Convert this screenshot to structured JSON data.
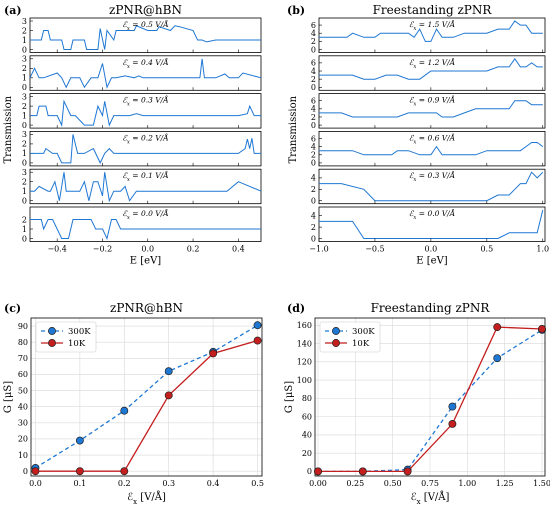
{
  "chart_data": [
    {
      "id": "a",
      "panel_label": "(a)",
      "type": "line",
      "title": "zPNR@hBN",
      "xlabel": "E [eV]",
      "ylabel": "Transmission",
      "xlim": [
        -0.52,
        0.5
      ],
      "xticks": [
        "−0.4",
        "−0.2",
        "0.0",
        "0.2",
        "0.4"
      ],
      "xtick_values": [
        -0.4,
        -0.2,
        0.0,
        0.2,
        0.4
      ],
      "color": "#1f77d4",
      "subplots": [
        {
          "label": "ℰ_x = 0.5 V/Å",
          "ylim": [
            0,
            3
          ],
          "yticks": [
            "0",
            "1",
            "2",
            "3"
          ],
          "x": [
            -0.52,
            -0.47,
            -0.46,
            -0.44,
            -0.43,
            -0.38,
            -0.37,
            -0.34,
            -0.33,
            -0.28,
            -0.27,
            -0.22,
            -0.21,
            -0.19,
            -0.18,
            -0.15,
            -0.14,
            -0.1,
            -0.06,
            -0.05,
            0.0,
            0.04,
            0.05,
            0.1,
            0.12,
            0.14,
            0.2,
            0.22,
            0.24,
            0.26,
            0.3,
            0.5
          ],
          "y": [
            1,
            1,
            2,
            2,
            1,
            1,
            0,
            0,
            1,
            1,
            0,
            0,
            2.2,
            0,
            2,
            1,
            2,
            2,
            2,
            2.5,
            2,
            2,
            2.4,
            2,
            2.5,
            2.4,
            2,
            1,
            1,
            0.8,
            1,
            1
          ]
        },
        {
          "label": "ℰ_x = 0.4 V/Å",
          "ylim": [
            0,
            3
          ],
          "yticks": [
            "0",
            "1",
            "2",
            "3"
          ],
          "x": [
            -0.52,
            -0.5,
            -0.48,
            -0.46,
            -0.4,
            -0.38,
            -0.36,
            -0.34,
            -0.3,
            -0.28,
            -0.25,
            -0.22,
            -0.2,
            -0.18,
            -0.16,
            -0.14,
            -0.1,
            -0.06,
            -0.04,
            -0.02,
            0.0,
            0.05,
            0.1,
            0.15,
            0.2,
            0.23,
            0.24,
            0.25,
            0.28,
            0.3,
            0.34,
            0.36,
            0.4,
            0.42,
            0.5
          ],
          "y": [
            1,
            2,
            1,
            1,
            1.5,
            1,
            0,
            1,
            1,
            0,
            1,
            1,
            2.5,
            0,
            1,
            1,
            1.2,
            1,
            1.2,
            1,
            1,
            1,
            1,
            1,
            1,
            1,
            3,
            1,
            1,
            1,
            1.4,
            1,
            1,
            1.5,
            1
          ]
        },
        {
          "label": "ℰ_x = 0.3 V/Å",
          "ylim": [
            0,
            3
          ],
          "yticks": [
            "0",
            "1",
            "2",
            "3"
          ],
          "x": [
            -0.52,
            -0.49,
            -0.48,
            -0.45,
            -0.44,
            -0.4,
            -0.38,
            -0.37,
            -0.34,
            -0.32,
            -0.28,
            -0.24,
            -0.22,
            -0.2,
            -0.19,
            -0.17,
            -0.15,
            -0.12,
            -0.08,
            -0.05,
            -0.02,
            0.0,
            0.05,
            0.1,
            0.2,
            0.25,
            0.3,
            0.35,
            0.4,
            0.44,
            0.45,
            0.47,
            0.5
          ],
          "y": [
            1,
            1,
            2,
            2,
            1,
            1,
            0,
            2.5,
            1,
            1,
            0,
            0,
            2,
            1,
            2.5,
            0,
            1,
            1,
            1,
            1.2,
            1,
            1,
            1,
            1,
            1,
            1,
            1,
            1,
            1,
            1.2,
            2,
            1,
            1
          ]
        },
        {
          "label": "ℰ_x = 0.2 V/Å",
          "ylim": [
            0,
            3
          ],
          "yticks": [
            "0",
            "1",
            "2",
            "3"
          ],
          "x": [
            -0.52,
            -0.46,
            -0.45,
            -0.42,
            -0.4,
            -0.38,
            -0.34,
            -0.33,
            -0.31,
            -0.28,
            -0.24,
            -0.21,
            -0.19,
            -0.17,
            -0.15,
            -0.12,
            -0.08,
            -0.04,
            0.0,
            0.05,
            0.1,
            0.15,
            0.2,
            0.25,
            0.3,
            0.35,
            0.4,
            0.43,
            0.44,
            0.45,
            0.46,
            0.47,
            0.5
          ],
          "y": [
            1,
            1,
            1.5,
            1,
            1,
            0,
            0,
            3,
            1,
            1,
            1.5,
            0,
            1,
            1.5,
            1,
            1,
            1,
            1,
            1,
            1,
            1,
            1,
            1,
            1,
            1,
            1,
            1,
            1.5,
            2.5,
            1.5,
            2.6,
            1,
            1
          ]
        },
        {
          "label": "ℰ_x = 0.1 V/Å",
          "ylim": [
            0,
            3
          ],
          "yticks": [
            "0",
            "1",
            "2",
            "3"
          ],
          "x": [
            -0.52,
            -0.5,
            -0.48,
            -0.44,
            -0.43,
            -0.41,
            -0.39,
            -0.37,
            -0.36,
            -0.34,
            -0.3,
            -0.28,
            -0.26,
            -0.24,
            -0.22,
            -0.2,
            -0.19,
            -0.17,
            -0.15,
            -0.12,
            -0.1,
            -0.08,
            -0.05,
            -0.02,
            0.0,
            0.05,
            0.1,
            0.2,
            0.3,
            0.35,
            0.4,
            0.45,
            0.5
          ],
          "y": [
            1,
            1,
            1.5,
            1,
            1,
            2,
            0,
            3,
            1,
            1,
            1,
            2,
            0,
            2,
            2,
            0.5,
            3,
            0,
            1,
            1,
            1.5,
            0,
            1,
            1,
            1,
            1,
            1,
            1,
            1,
            1,
            2,
            1.5,
            1
          ]
        },
        {
          "label": "ℰ_x = 0.0 V/Å",
          "ylim": [
            0,
            3
          ],
          "yticks": [
            "0",
            "1",
            "2"
          ],
          "x": [
            -0.52,
            -0.47,
            -0.46,
            -0.44,
            -0.42,
            -0.38,
            -0.35,
            -0.33,
            -0.3,
            -0.25,
            -0.23,
            -0.2,
            -0.18,
            -0.16,
            -0.14,
            -0.12,
            -0.08,
            -0.04,
            0.0,
            0.05,
            0.1,
            0.15,
            0.2,
            0.25,
            0.3,
            0.35,
            0.4,
            0.45,
            0.5
          ],
          "y": [
            2,
            2,
            1,
            2,
            2,
            0,
            0,
            2,
            2,
            2,
            1,
            1,
            0,
            2,
            2,
            1,
            1,
            1,
            1,
            1,
            1,
            1,
            1,
            1,
            1,
            1,
            1,
            1,
            1
          ]
        }
      ]
    },
    {
      "id": "b",
      "panel_label": "(b)",
      "type": "line",
      "title": "Freestanding zPNR",
      "xlabel": "E [eV]",
      "ylabel": "Transmission",
      "xlim": [
        -1.0,
        1.02
      ],
      "xticks": [
        "−1.0",
        "−0.5",
        "0.0",
        "0.5",
        "1.0"
      ],
      "xtick_values": [
        -1.0,
        -0.5,
        0.0,
        0.5,
        1.0
      ],
      "color": "#1f77d4",
      "subplots": [
        {
          "label": "ℰ_x = 1.5 V/Å",
          "ylim": [
            0,
            7
          ],
          "yticks": [
            "0",
            "2",
            "4",
            "6"
          ],
          "x": [
            -1.0,
            -0.75,
            -0.7,
            -0.6,
            -0.5,
            -0.45,
            -0.3,
            -0.2,
            -0.15,
            -0.1,
            -0.05,
            0.0,
            0.05,
            0.1,
            0.2,
            0.3,
            0.4,
            0.5,
            0.6,
            0.7,
            0.75,
            0.8,
            0.85,
            0.9,
            0.95,
            1.0
          ],
          "y": [
            3,
            3,
            4,
            3,
            3,
            4,
            4,
            4,
            3,
            5,
            2,
            2,
            5,
            3,
            3,
            4,
            4,
            4,
            5,
            5,
            7,
            6,
            6,
            4,
            4,
            4
          ]
        },
        {
          "label": "ℰ_x = 1.2 V/Å",
          "ylim": [
            0,
            7
          ],
          "yticks": [
            "0",
            "2",
            "4",
            "6"
          ],
          "x": [
            -1.0,
            -0.8,
            -0.7,
            -0.6,
            -0.5,
            -0.4,
            -0.3,
            -0.2,
            -0.1,
            0.0,
            0.05,
            0.1,
            0.2,
            0.3,
            0.4,
            0.5,
            0.6,
            0.7,
            0.75,
            0.8,
            0.85,
            0.9,
            0.95,
            1.0
          ],
          "y": [
            3,
            3,
            3,
            2,
            2,
            3,
            3,
            2,
            2,
            4,
            4,
            4,
            4,
            4,
            4,
            4,
            5,
            5,
            7,
            5,
            5,
            6,
            5,
            5
          ]
        },
        {
          "label": "ℰ_x = 0.9 V/Å",
          "ylim": [
            0,
            7
          ],
          "yticks": [
            "0",
            "2",
            "4",
            "6"
          ],
          "x": [
            -1.0,
            -0.8,
            -0.7,
            -0.6,
            -0.5,
            -0.3,
            -0.2,
            -0.1,
            0.0,
            0.05,
            0.1,
            0.2,
            0.3,
            0.4,
            0.5,
            0.6,
            0.7,
            0.75,
            0.85,
            0.9,
            0.95,
            1.0
          ],
          "y": [
            3,
            3,
            2,
            2,
            2,
            2,
            3,
            3,
            3,
            3,
            2,
            2,
            3,
            4,
            4,
            4,
            4,
            6,
            6,
            5,
            5,
            5
          ]
        },
        {
          "label": "ℰ_x = 0.6 V/Å",
          "ylim": [
            0,
            7
          ],
          "yticks": [
            "0",
            "2",
            "4",
            "6"
          ],
          "x": [
            -1.0,
            -0.8,
            -0.7,
            -0.6,
            -0.5,
            -0.35,
            -0.3,
            -0.2,
            -0.1,
            0.0,
            0.05,
            0.1,
            0.2,
            0.3,
            0.4,
            0.5,
            0.6,
            0.7,
            0.8,
            0.85,
            0.9,
            0.95,
            1.0
          ],
          "y": [
            3,
            3,
            3,
            2,
            2,
            2,
            3,
            3,
            2,
            2,
            4,
            2,
            2,
            2,
            2,
            3,
            3,
            3,
            3,
            4,
            5,
            5,
            4
          ]
        },
        {
          "label": "ℰ_x = 0.3 V/Å",
          "ylim": [
            0,
            5
          ],
          "yticks": [
            "0",
            "2",
            "4"
          ],
          "x": [
            -1.0,
            -0.8,
            -0.6,
            -0.5,
            -0.3,
            -0.1,
            0.0,
            0.1,
            0.3,
            0.5,
            0.6,
            0.7,
            0.75,
            0.8,
            0.85,
            0.9,
            0.95,
            1.0
          ],
          "y": [
            3,
            3,
            2,
            0,
            0,
            0,
            0,
            0,
            0,
            0,
            1,
            1,
            2,
            3,
            3,
            5,
            4,
            5
          ]
        },
        {
          "label": "ℰ_x = 0.0 V/Å",
          "ylim": [
            0,
            5
          ],
          "yticks": [
            "0",
            "2",
            "4"
          ],
          "x": [
            -1.0,
            -0.85,
            -0.7,
            -0.6,
            -0.4,
            -0.2,
            0.0,
            0.2,
            0.4,
            0.6,
            0.7,
            0.8,
            0.9,
            0.95,
            1.0
          ],
          "y": [
            3,
            3,
            3,
            0,
            0,
            0,
            0,
            0,
            0,
            0,
            1,
            1,
            1,
            1,
            5
          ]
        }
      ]
    },
    {
      "id": "c",
      "panel_label": "(c)",
      "type": "line",
      "title": "zPNR@hBN",
      "xlabel": "ℰ_x [V/Å]",
      "ylabel": "G [μS]",
      "xlim": [
        -0.01,
        0.51
      ],
      "ylim": [
        -3,
        95
      ],
      "xticks": [
        "0.0",
        "0.1",
        "0.2",
        "0.3",
        "0.4",
        "0.5"
      ],
      "xtick_values": [
        0.0,
        0.1,
        0.2,
        0.3,
        0.4,
        0.5
      ],
      "yticks": [
        "0",
        "10",
        "20",
        "30",
        "40",
        "50",
        "60",
        "70",
        "80",
        "90"
      ],
      "ytick_values": [
        0,
        10,
        20,
        30,
        40,
        50,
        60,
        70,
        80,
        90
      ],
      "grid": true,
      "legend": "top-left",
      "series": [
        {
          "name": "300K",
          "color": "#1f77d4",
          "style": "dashed",
          "x": [
            0.0,
            0.1,
            0.2,
            0.3,
            0.4,
            0.5
          ],
          "y": [
            2,
            19,
            37.5,
            62,
            74,
            90.5
          ]
        },
        {
          "name": "10K",
          "color": "#c41e1e",
          "style": "solid",
          "x": [
            0.0,
            0.1,
            0.2,
            0.3,
            0.4,
            0.5
          ],
          "y": [
            0,
            0,
            0,
            47,
            73,
            81
          ]
        }
      ]
    },
    {
      "id": "d",
      "panel_label": "(d)",
      "type": "line",
      "title": "Freestanding zPNR",
      "xlabel": "ℰ_x [V/Å]",
      "ylabel": "G [μS]",
      "xlim": [
        -0.02,
        1.52
      ],
      "ylim": [
        -5,
        168
      ],
      "xticks": [
        "0.00",
        "0.25",
        "0.50",
        "0.75",
        "1.00",
        "1.25",
        "1.50"
      ],
      "xtick_values": [
        0.0,
        0.25,
        0.5,
        0.75,
        1.0,
        1.25,
        1.5
      ],
      "yticks": [
        "0",
        "20",
        "40",
        "60",
        "80",
        "100",
        "120",
        "140",
        "160"
      ],
      "ytick_values": [
        0,
        20,
        40,
        60,
        80,
        100,
        120,
        140,
        160
      ],
      "grid": true,
      "legend": "top-left",
      "series": [
        {
          "name": "300K",
          "color": "#1f77d4",
          "style": "dashed",
          "x": [
            0.0,
            0.3,
            0.6,
            0.9,
            1.2,
            1.5
          ],
          "y": [
            0,
            0,
            2,
            71,
            124,
            155
          ]
        },
        {
          "name": "10K",
          "color": "#c41e1e",
          "style": "solid",
          "x": [
            0.0,
            0.3,
            0.6,
            0.9,
            1.2,
            1.5
          ],
          "y": [
            0,
            0,
            0,
            52,
            158,
            156
          ]
        }
      ]
    }
  ]
}
